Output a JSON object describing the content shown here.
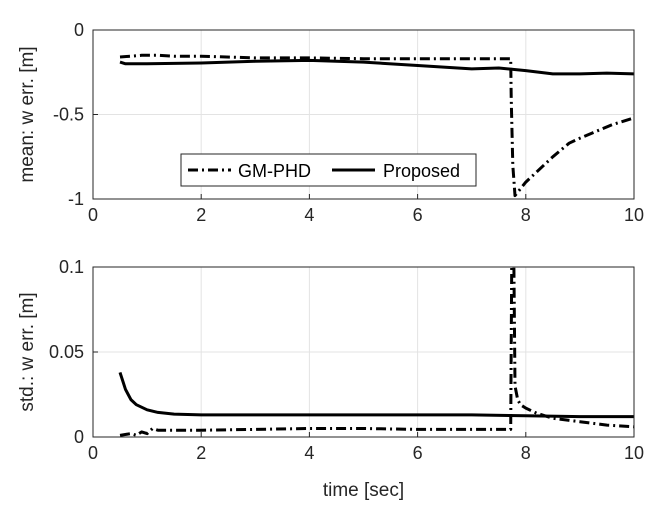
{
  "chart_data": [
    {
      "type": "line",
      "title": "",
      "xlabel": "",
      "ylabel": "mean: w err. [m]",
      "xlim": [
        0,
        10
      ],
      "ylim": [
        -1,
        0
      ],
      "xticks": [
        0,
        2,
        4,
        6,
        8,
        10
      ],
      "yticks": [
        -1,
        -0.5,
        0
      ],
      "xtick_labels": [
        "0",
        "2",
        "4",
        "6",
        "8",
        "10"
      ],
      "ytick_labels": [
        "-1",
        "-0.5",
        "0"
      ],
      "grid": true,
      "legend": {
        "placement": "lower-center",
        "orientation": "horizontal"
      },
      "series": [
        {
          "name": "GM-PHD",
          "style": "dash-dot",
          "color": "#000000",
          "x": [
            0.5,
            0.7,
            0.9,
            1.2,
            1.5,
            2.0,
            3.0,
            4.0,
            5.0,
            6.0,
            7.0,
            7.5,
            7.72,
            7.73,
            7.76,
            7.8,
            7.85,
            7.9,
            8.0,
            8.2,
            8.5,
            8.8,
            9.0,
            9.3,
            9.6,
            10.0
          ],
          "y": [
            -0.16,
            -0.155,
            -0.15,
            -0.15,
            -0.155,
            -0.155,
            -0.165,
            -0.165,
            -0.17,
            -0.17,
            -0.17,
            -0.17,
            -0.17,
            -0.4,
            -0.8,
            -0.98,
            -0.96,
            -0.94,
            -0.9,
            -0.84,
            -0.75,
            -0.67,
            -0.64,
            -0.6,
            -0.56,
            -0.52
          ]
        },
        {
          "name": "Proposed",
          "style": "solid",
          "color": "#000000",
          "x": [
            0.5,
            0.6,
            0.7,
            1.0,
            2.0,
            3.0,
            4.0,
            5.0,
            6.0,
            7.0,
            7.5,
            8.0,
            8.5,
            9.0,
            9.5,
            10.0
          ],
          "y": [
            -0.19,
            -0.2,
            -0.2,
            -0.2,
            -0.195,
            -0.185,
            -0.18,
            -0.19,
            -0.21,
            -0.23,
            -0.225,
            -0.24,
            -0.26,
            -0.26,
            -0.255,
            -0.26
          ]
        }
      ]
    },
    {
      "type": "line",
      "title": "",
      "xlabel": "time [sec]",
      "ylabel": "std.: w err. [m]",
      "xlim": [
        0,
        10
      ],
      "ylim": [
        0,
        0.1
      ],
      "xticks": [
        0,
        2,
        4,
        6,
        8,
        10
      ],
      "yticks": [
        0,
        0.05,
        0.1
      ],
      "xtick_labels": [
        "0",
        "2",
        "4",
        "6",
        "8",
        "10"
      ],
      "ytick_labels": [
        "0",
        "0.05",
        "0.1"
      ],
      "grid": true,
      "series": [
        {
          "name": "GM-PHD",
          "style": "dash-dot",
          "color": "#000000",
          "x": [
            0.5,
            0.7,
            0.8,
            0.9,
            1.0,
            1.1,
            1.2,
            1.5,
            2.0,
            3.0,
            4.0,
            5.0,
            6.0,
            7.0,
            7.5,
            7.72,
            7.74,
            7.76,
            7.78,
            7.8,
            7.85,
            7.9,
            8.0,
            8.2,
            8.5,
            9.0,
            9.5,
            10.0
          ],
          "y": [
            0.001,
            0.002,
            0.001,
            0.003,
            0.002,
            0.005,
            0.004,
            0.004,
            0.004,
            0.0045,
            0.005,
            0.005,
            0.0045,
            0.0045,
            0.0045,
            0.0045,
            0.1,
            0.1,
            0.1,
            0.03,
            0.022,
            0.019,
            0.017,
            0.014,
            0.011,
            0.009,
            0.007,
            0.006
          ]
        },
        {
          "name": "Proposed",
          "style": "solid",
          "color": "#000000",
          "x": [
            0.5,
            0.6,
            0.7,
            0.8,
            1.0,
            1.2,
            1.5,
            2.0,
            3.0,
            4.0,
            5.0,
            6.0,
            7.0,
            8.0,
            9.0,
            10.0
          ],
          "y": [
            0.038,
            0.028,
            0.022,
            0.019,
            0.016,
            0.0145,
            0.0135,
            0.013,
            0.013,
            0.013,
            0.013,
            0.013,
            0.013,
            0.0125,
            0.012,
            0.012
          ]
        }
      ]
    }
  ]
}
